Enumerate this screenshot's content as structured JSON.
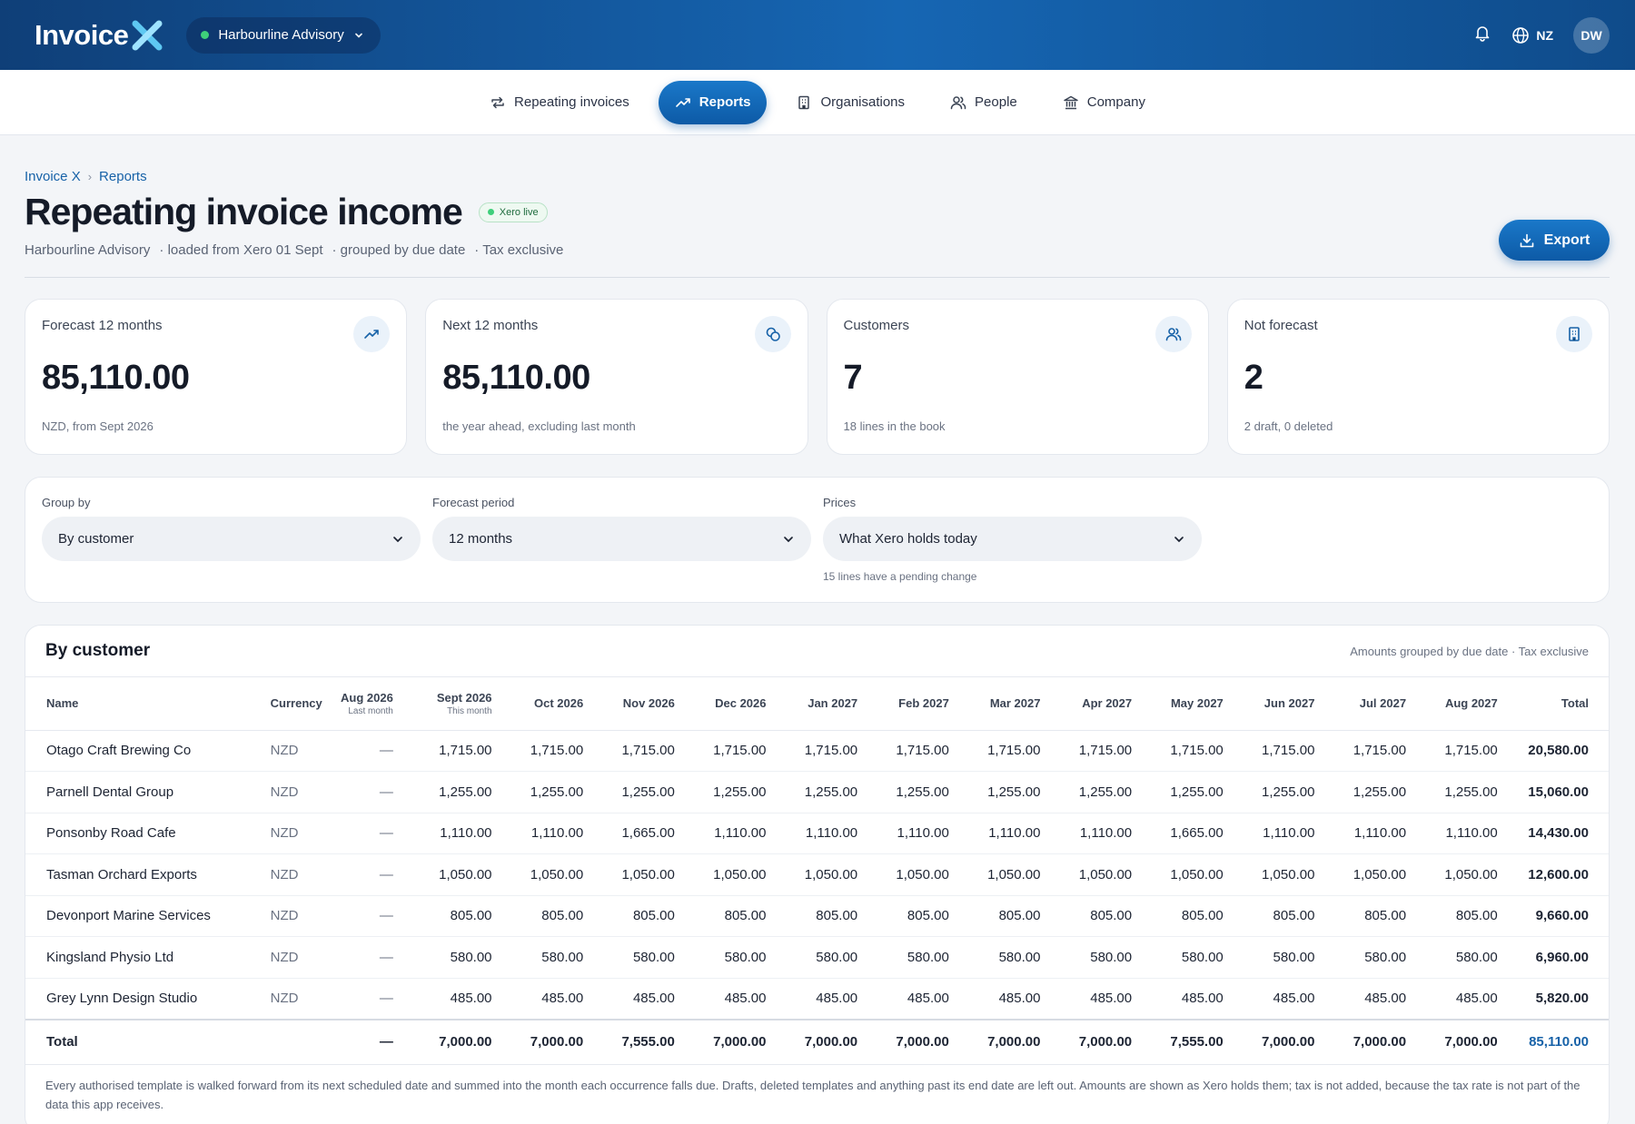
{
  "app": {
    "logo_text": "Invoice",
    "org_name": "Harbourline Advisory",
    "lang": "NZ",
    "user_initials": "DW"
  },
  "nav": [
    {
      "label": "Repeating invoices",
      "icon": "repeat-icon",
      "active": false
    },
    {
      "label": "Reports",
      "icon": "trend-up-icon",
      "active": true
    },
    {
      "label": "Organisations",
      "icon": "building-icon",
      "active": false
    },
    {
      "label": "People",
      "icon": "people-icon",
      "active": false
    },
    {
      "label": "Company",
      "icon": "bank-icon",
      "active": false
    }
  ],
  "breadcrumb": [
    "Invoice X",
    "Reports"
  ],
  "page": {
    "title": "Repeating invoice income",
    "badge": "Xero live",
    "meta": [
      "Harbourline Advisory",
      "· loaded from Xero 01 Sept",
      "· grouped by due date",
      "· Tax exclusive"
    ],
    "export_label": "Export"
  },
  "cards": [
    {
      "label": "Forecast 12 months",
      "value": "85,110.00",
      "note": "NZD, from Sept 2026",
      "icon": "trend-up-icon"
    },
    {
      "label": "Next 12 months",
      "value": "85,110.00",
      "note": "the year ahead, excluding last month",
      "icon": "coins-icon"
    },
    {
      "label": "Customers",
      "value": "7",
      "note": "18 lines in the book",
      "icon": "people-icon"
    },
    {
      "label": "Not forecast",
      "value": "2",
      "note": "2 draft, 0 deleted",
      "icon": "building-icon"
    }
  ],
  "filters": {
    "group_by": {
      "label": "Group by",
      "value": "By customer"
    },
    "period": {
      "label": "Forecast period",
      "value": "12 months"
    },
    "prices": {
      "label": "Prices",
      "value": "What Xero holds today",
      "hint": "15 lines have a pending change"
    }
  },
  "table": {
    "title": "By customer",
    "note": "Amounts grouped by due date · Tax exclusive",
    "headers": {
      "name": "Name",
      "currency": "Currency",
      "months": [
        {
          "label": "Aug 2026",
          "sub": "Last month"
        },
        {
          "label": "Sept 2026",
          "sub": "This month"
        },
        {
          "label": "Oct 2026",
          "sub": ""
        },
        {
          "label": "Nov 2026",
          "sub": ""
        },
        {
          "label": "Dec 2026",
          "sub": ""
        },
        {
          "label": "Jan 2027",
          "sub": ""
        },
        {
          "label": "Feb 2027",
          "sub": ""
        },
        {
          "label": "Mar 2027",
          "sub": ""
        },
        {
          "label": "Apr 2027",
          "sub": ""
        },
        {
          "label": "May 2027",
          "sub": ""
        },
        {
          "label": "Jun 2027",
          "sub": ""
        },
        {
          "label": "Jul 2027",
          "sub": ""
        },
        {
          "label": "Aug 2027",
          "sub": ""
        }
      ],
      "total": "Total"
    },
    "rows": [
      {
        "name": "Otago Craft Brewing Co",
        "currency": "NZD",
        "values": [
          "—",
          "1,715.00",
          "1,715.00",
          "1,715.00",
          "1,715.00",
          "1,715.00",
          "1,715.00",
          "1,715.00",
          "1,715.00",
          "1,715.00",
          "1,715.00",
          "1,715.00",
          "1,715.00"
        ],
        "total": "20,580.00"
      },
      {
        "name": "Parnell Dental Group",
        "currency": "NZD",
        "values": [
          "—",
          "1,255.00",
          "1,255.00",
          "1,255.00",
          "1,255.00",
          "1,255.00",
          "1,255.00",
          "1,255.00",
          "1,255.00",
          "1,255.00",
          "1,255.00",
          "1,255.00",
          "1,255.00"
        ],
        "total": "15,060.00"
      },
      {
        "name": "Ponsonby Road Cafe",
        "currency": "NZD",
        "values": [
          "—",
          "1,110.00",
          "1,110.00",
          "1,665.00",
          "1,110.00",
          "1,110.00",
          "1,110.00",
          "1,110.00",
          "1,110.00",
          "1,665.00",
          "1,110.00",
          "1,110.00",
          "1,110.00"
        ],
        "total": "14,430.00"
      },
      {
        "name": "Tasman Orchard Exports",
        "currency": "NZD",
        "values": [
          "—",
          "1,050.00",
          "1,050.00",
          "1,050.00",
          "1,050.00",
          "1,050.00",
          "1,050.00",
          "1,050.00",
          "1,050.00",
          "1,050.00",
          "1,050.00",
          "1,050.00",
          "1,050.00"
        ],
        "total": "12,600.00"
      },
      {
        "name": "Devonport Marine Services",
        "currency": "NZD",
        "values": [
          "—",
          "805.00",
          "805.00",
          "805.00",
          "805.00",
          "805.00",
          "805.00",
          "805.00",
          "805.00",
          "805.00",
          "805.00",
          "805.00",
          "805.00"
        ],
        "total": "9,660.00"
      },
      {
        "name": "Kingsland Physio Ltd",
        "currency": "NZD",
        "values": [
          "—",
          "580.00",
          "580.00",
          "580.00",
          "580.00",
          "580.00",
          "580.00",
          "580.00",
          "580.00",
          "580.00",
          "580.00",
          "580.00",
          "580.00"
        ],
        "total": "6,960.00"
      },
      {
        "name": "Grey Lynn Design Studio",
        "currency": "NZD",
        "values": [
          "—",
          "485.00",
          "485.00",
          "485.00",
          "485.00",
          "485.00",
          "485.00",
          "485.00",
          "485.00",
          "485.00",
          "485.00",
          "485.00",
          "485.00"
        ],
        "total": "5,820.00"
      }
    ],
    "totals": {
      "label": "Total",
      "values": [
        "—",
        "7,000.00",
        "7,000.00",
        "7,555.00",
        "7,000.00",
        "7,000.00",
        "7,000.00",
        "7,000.00",
        "7,000.00",
        "7,555.00",
        "7,000.00",
        "7,000.00",
        "7,000.00"
      ],
      "total": "85,110.00"
    },
    "footnote": "Every authorised template is walked forward from its next scheduled date and summed into the month each occurrence falls due. Drafts, deleted templates and anything past its end date are left out. Amounts are shown as Xero holds them; tax is not added, because the tax rate is not part of the data this app receives."
  },
  "colors": {
    "brand": "#1666b3",
    "accent": "#1762a8",
    "live": "#3ecf7a"
  }
}
